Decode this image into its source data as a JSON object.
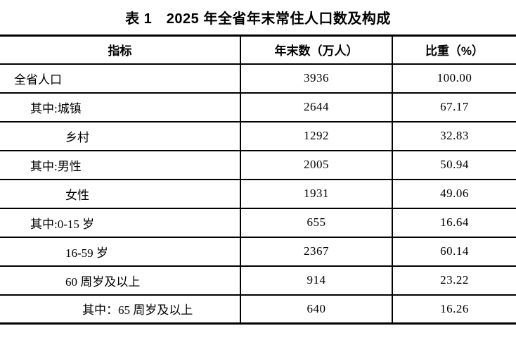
{
  "title": "表 1　2025 年全省年末常住人口数及构成",
  "table": {
    "columns": [
      "指标",
      "年末数（万人）",
      "比重（%）"
    ],
    "rows": [
      {
        "indicator": "全省人口",
        "value": "3936",
        "share": "100.00",
        "indent": 0
      },
      {
        "indicator": "其中:城镇",
        "value": "2644",
        "share": "67.17",
        "indent": 1
      },
      {
        "indicator": "乡村",
        "value": "1292",
        "share": "32.83",
        "indent": 2
      },
      {
        "indicator": "其中:男性",
        "value": "2005",
        "share": "50.94",
        "indent": 1
      },
      {
        "indicator": "女性",
        "value": "1931",
        "share": "49.06",
        "indent": 2
      },
      {
        "indicator": "其中:0-15 岁",
        "value": "655",
        "share": "16.64",
        "indent": 1
      },
      {
        "indicator": "16-59 岁",
        "value": "2367",
        "share": "60.14",
        "indent": 2
      },
      {
        "indicator": "60 周岁及以上",
        "value": "914",
        "share": "23.22",
        "indent": 2
      },
      {
        "indicator": "其中：65 周岁及以上",
        "value": "640",
        "share": "16.26",
        "indent": 3
      }
    ]
  },
  "colors": {
    "text": "#000000",
    "background": "#ffffff",
    "border": "#000000"
  }
}
